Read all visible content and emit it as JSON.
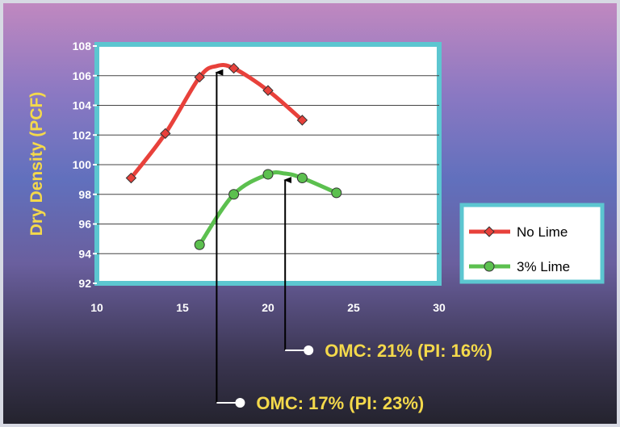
{
  "chart_data": {
    "type": "line",
    "title": "",
    "xlabel": "",
    "ylabel": "Dry Density (PCF)",
    "xlim": [
      10,
      30
    ],
    "ylim": [
      92,
      108
    ],
    "x_ticks": [
      "10",
      "15",
      "20",
      "25",
      "30"
    ],
    "y_ticks": [
      "92",
      "94",
      "96",
      "98",
      "100",
      "102",
      "104",
      "106",
      "108"
    ],
    "grid": "horizontal",
    "legend_position": "right",
    "series": [
      {
        "name": "No Lime",
        "color": "#e8413b",
        "marker": "diamond",
        "points": [
          [
            12,
            99.1
          ],
          [
            14,
            102.1
          ],
          [
            16,
            105.9
          ],
          [
            18,
            106.5
          ],
          [
            20,
            105.0
          ],
          [
            22,
            103.0
          ]
        ],
        "smooth_curve": [
          [
            12,
            99.1
          ],
          [
            14,
            102.1
          ],
          [
            16,
            105.9
          ],
          [
            17,
            106.65
          ],
          [
            18,
            106.5
          ],
          [
            20,
            105.0
          ],
          [
            22,
            103.0
          ]
        ]
      },
      {
        "name": "3% Lime",
        "color": "#5cc04f",
        "marker": "circle",
        "points": [
          [
            16,
            94.6
          ],
          [
            18,
            98.0
          ],
          [
            20,
            99.35
          ],
          [
            22,
            99.1
          ],
          [
            24,
            98.1
          ]
        ],
        "smooth_curve": [
          [
            16,
            94.6
          ],
          [
            18,
            98.0
          ],
          [
            20,
            99.35
          ],
          [
            21,
            99.4
          ],
          [
            22,
            99.1
          ],
          [
            24,
            98.1
          ]
        ]
      }
    ],
    "annotations": [
      {
        "text": "OMC: 21% (PI: 16%)",
        "x": 21,
        "y": 99.4,
        "series": "3% Lime"
      },
      {
        "text": "OMC: 17% (PI: 23%)",
        "x": 17,
        "y": 106.65,
        "series": "No Lime"
      }
    ]
  }
}
